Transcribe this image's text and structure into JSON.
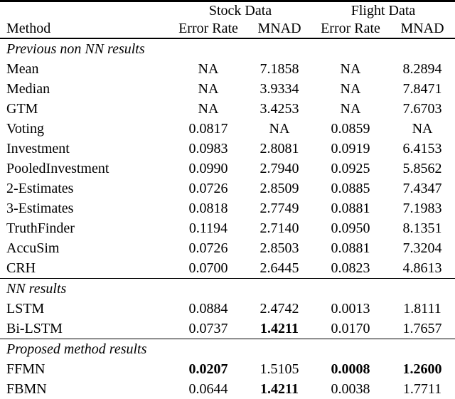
{
  "table": {
    "col_groups": [
      {
        "label": "Stock Data"
      },
      {
        "label": "Flight Data"
      }
    ],
    "columns": [
      "Method",
      "Error Rate",
      "MNAD",
      "Error Rate",
      "MNAD"
    ],
    "sections": [
      {
        "title": "Previous non NN results",
        "rows": [
          {
            "method": "Mean",
            "values": [
              "NA",
              "7.1858",
              "NA",
              "8.2894"
            ],
            "bold": [
              false,
              false,
              false,
              false
            ]
          },
          {
            "method": "Median",
            "values": [
              "NA",
              "3.9334",
              "NA",
              "7.8471"
            ],
            "bold": [
              false,
              false,
              false,
              false
            ]
          },
          {
            "method": "GTM",
            "values": [
              "NA",
              "3.4253",
              "NA",
              "7.6703"
            ],
            "bold": [
              false,
              false,
              false,
              false
            ]
          },
          {
            "method": "Voting",
            "values": [
              "0.0817",
              "NA",
              "0.0859",
              "NA"
            ],
            "bold": [
              false,
              false,
              false,
              false
            ]
          },
          {
            "method": "Investment",
            "values": [
              "0.0983",
              "2.8081",
              "0.0919",
              "6.4153"
            ],
            "bold": [
              false,
              false,
              false,
              false
            ]
          },
          {
            "method": "PooledInvestment",
            "values": [
              "0.0990",
              "2.7940",
              "0.0925",
              "5.8562"
            ],
            "bold": [
              false,
              false,
              false,
              false
            ]
          },
          {
            "method": "2-Estimates",
            "values": [
              "0.0726",
              "2.8509",
              "0.0885",
              "7.4347"
            ],
            "bold": [
              false,
              false,
              false,
              false
            ]
          },
          {
            "method": "3-Estimates",
            "values": [
              "0.0818",
              "2.7749",
              "0.0881",
              "7.1983"
            ],
            "bold": [
              false,
              false,
              false,
              false
            ]
          },
          {
            "method": "TruthFinder",
            "values": [
              "0.1194",
              "2.7140",
              "0.0950",
              "8.1351"
            ],
            "bold": [
              false,
              false,
              false,
              false
            ]
          },
          {
            "method": "AccuSim",
            "values": [
              "0.0726",
              "2.8503",
              "0.0881",
              "7.3204"
            ],
            "bold": [
              false,
              false,
              false,
              false
            ]
          },
          {
            "method": "CRH",
            "values": [
              "0.0700",
              "2.6445",
              "0.0823",
              "4.8613"
            ],
            "bold": [
              false,
              false,
              false,
              false
            ]
          }
        ]
      },
      {
        "title": "NN results",
        "rows": [
          {
            "method": "LSTM",
            "values": [
              "0.0884",
              "2.4742",
              "0.0013",
              "1.8111"
            ],
            "bold": [
              false,
              false,
              false,
              false
            ]
          },
          {
            "method": "Bi-LSTM",
            "values": [
              "0.0737",
              "1.4211",
              "0.0170",
              "1.7657"
            ],
            "bold": [
              false,
              true,
              false,
              false
            ]
          }
        ]
      },
      {
        "title": "Proposed method results",
        "rows": [
          {
            "method": "FFMN",
            "values": [
              "0.0207",
              "1.5105",
              "0.0008",
              "1.2600"
            ],
            "bold": [
              true,
              false,
              true,
              true
            ]
          },
          {
            "method": "FBMN",
            "values": [
              "0.0644",
              "1.4211",
              "0.0038",
              "1.7711"
            ],
            "bold": [
              false,
              true,
              false,
              false
            ]
          }
        ]
      }
    ]
  }
}
